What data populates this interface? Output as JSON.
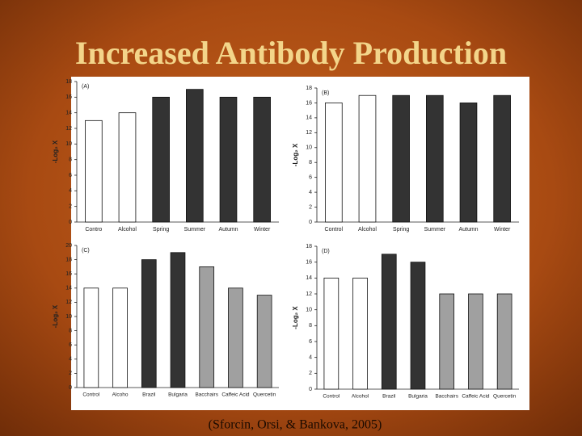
{
  "title": "Increased Antibody Production",
  "caption": "(Sforcin, Orsi, & Bankova, 2005)",
  "chart_data": [
    {
      "type": "bar",
      "label": "(A)",
      "ylabel": "-Log₂ X",
      "categories": [
        "Contro",
        "Alcohol",
        "Spring",
        "Summer",
        "Autumn",
        "Winter"
      ],
      "values": [
        13,
        14,
        16,
        17,
        16,
        16
      ],
      "colors": [
        "#ffffff",
        "#ffffff",
        "#333333",
        "#333333",
        "#333333",
        "#333333"
      ],
      "ylim": [
        0,
        18
      ],
      "yticks": [
        0,
        2,
        4,
        6,
        8,
        10,
        12,
        14,
        16,
        18
      ]
    },
    {
      "type": "bar",
      "label": "(B)",
      "ylabel": "-Log₂ X",
      "categories": [
        "Control",
        "Alcohol",
        "Spring",
        "Summer",
        "Autumn",
        "Winter"
      ],
      "values": [
        16,
        17,
        17,
        17,
        16,
        17
      ],
      "colors": [
        "#ffffff",
        "#ffffff",
        "#333333",
        "#333333",
        "#333333",
        "#333333"
      ],
      "ylim": [
        0,
        18
      ],
      "yticks": [
        0,
        2,
        4,
        6,
        8,
        10,
        12,
        14,
        16,
        18
      ]
    },
    {
      "type": "bar",
      "label": "(C)",
      "ylabel": "-Log₂ X",
      "categories": [
        "Control",
        "Alcoho",
        "Brazil",
        "Bulgaria",
        "Bacchairs",
        "Caffeic Acid",
        "Quercetin"
      ],
      "values": [
        14,
        14,
        18,
        19,
        17,
        14,
        13
      ],
      "colors": [
        "#ffffff",
        "#ffffff",
        "#333333",
        "#333333",
        "#a0a0a0",
        "#a0a0a0",
        "#a0a0a0"
      ],
      "ylim": [
        0,
        20
      ],
      "yticks": [
        0,
        2,
        4,
        6,
        8,
        10,
        12,
        14,
        16,
        18,
        20
      ]
    },
    {
      "type": "bar",
      "label": "(D)",
      "ylabel": "-Log₂ X",
      "categories": [
        "Control",
        "Alcohol",
        "Brazil",
        "Bulgaria",
        "Bacchairs",
        "Caffeic Acid",
        "Quercetin"
      ],
      "values": [
        14,
        14,
        17,
        16,
        12,
        12,
        12
      ],
      "colors": [
        "#ffffff",
        "#ffffff",
        "#333333",
        "#333333",
        "#a0a0a0",
        "#a0a0a0",
        "#a0a0a0"
      ],
      "ylim": [
        0,
        18
      ],
      "yticks": [
        0,
        2,
        4,
        6,
        8,
        10,
        12,
        14,
        16,
        18
      ]
    }
  ]
}
